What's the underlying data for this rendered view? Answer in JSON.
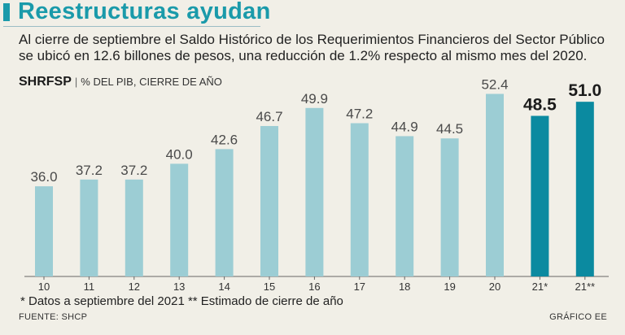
{
  "header": {
    "title": "Reestructuras ayudan",
    "subtitle": "Al cierre de septiembre el Saldo Histórico de los Requerimientos Financieros del Sector Público se ubicó en 12.6 billones de pesos, una reducción de 1.2% respecto al mismo mes del 2020."
  },
  "measure": {
    "name": "SHRFSP",
    "separator": "|",
    "unit": "% DEL PIB, CIERRE DE AÑO"
  },
  "footer": {
    "note": "* Datos a septiembre del 2021 ** Estimado de cierre de año",
    "source": "FUENTE: SHCP",
    "credit": "GRÁFICO EE"
  },
  "colors": {
    "title": "#1a9aaa",
    "bar_historic": "#9ccdd4",
    "bar_2021": "#0b8aa0",
    "label_historic": "#4a4a4a",
    "label_2021": "#1b1b1b",
    "axis": "#666666"
  },
  "chart_data": {
    "type": "bar",
    "title": "SHRFSP",
    "ylabel": "% DEL PIB, CIERRE DE AÑO",
    "xlabel": "",
    "categories": [
      "10",
      "11",
      "12",
      "13",
      "14",
      "15",
      "16",
      "17",
      "18",
      "19",
      "20",
      "21*",
      "21**"
    ],
    "values": [
      36.0,
      37.2,
      37.2,
      40.0,
      42.6,
      46.7,
      49.9,
      47.2,
      44.9,
      44.5,
      52.4,
      48.5,
      51.0
    ],
    "labels": [
      "36.0",
      "37.2",
      "37.2",
      "40.0",
      "42.6",
      "46.7",
      "49.9",
      "47.2",
      "44.9",
      "44.5",
      "52.4",
      "48.5",
      "51.0"
    ],
    "highlight": [
      false,
      false,
      false,
      false,
      false,
      false,
      false,
      false,
      false,
      false,
      false,
      true,
      true
    ],
    "ylim": [
      20,
      55
    ],
    "grid": false,
    "legend": "none"
  }
}
